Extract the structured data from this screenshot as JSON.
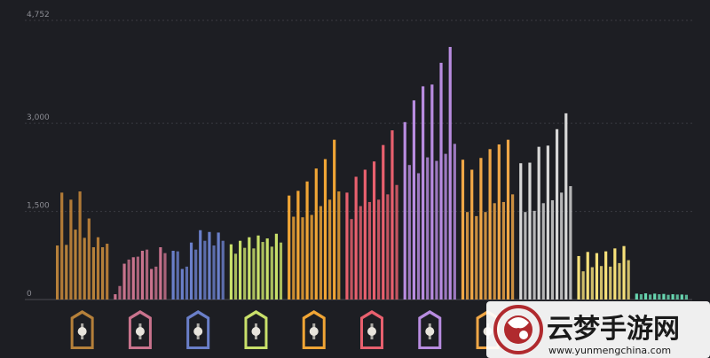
{
  "chart_data": {
    "type": "bar",
    "ylim": [
      0,
      4752
    ],
    "yticks": [
      {
        "value": 0,
        "label": "0"
      },
      {
        "value": 1500,
        "label": "1,500"
      },
      {
        "value": 3000,
        "label": "3,000"
      },
      {
        "value": 4752,
        "label": "4,752"
      }
    ],
    "grid": true,
    "groups": [
      {
        "icon": "hand-icon",
        "color": "#b5803a",
        "alt_color": "#d28f3c",
        "values": [
          920,
          1820,
          930,
          1700,
          1190,
          1840,
          1050,
          1380,
          890,
          1060,
          890,
          950
        ]
      },
      {
        "icon": "eye-mask-icon",
        "color": "#c9738d",
        "alt_color": "#c9738d",
        "values": [
          90,
          230,
          610,
          680,
          720,
          730,
          830,
          850,
          520,
          560,
          890,
          790
        ]
      },
      {
        "icon": "eye-key-icon",
        "color": "#6a7fc9",
        "alt_color": "#6a7fc9",
        "values": [
          830,
          820,
          520,
          560,
          970,
          850,
          1180,
          1000,
          1150,
          920,
          1140,
          1000
        ]
      },
      {
        "icon": "skull-leaf-icon",
        "color": "#c9e06a",
        "alt_color": "#c9e06a",
        "values": [
          940,
          780,
          1000,
          880,
          1060,
          870,
          1090,
          980,
          1040,
          900,
          1120,
          970
        ]
      },
      {
        "icon": "dagger-icon",
        "color": "#f0a535",
        "alt_color": "#f0a535",
        "values": [
          1770,
          1410,
          1850,
          1400,
          2010,
          1440,
          2230,
          1590,
          2390,
          1700,
          2720,
          1840
        ]
      },
      {
        "icon": "hand-drop-icon",
        "color": "#e8606e",
        "alt_color": "#e8606e",
        "values": [
          1820,
          1370,
          2090,
          1590,
          2210,
          1660,
          2350,
          1700,
          2630,
          1790,
          2880,
          1950
        ]
      },
      {
        "icon": "crown-icon",
        "color": "#b88ce0",
        "alt_color": "#b88ce0",
        "values": [
          3020,
          2290,
          3390,
          2150,
          3630,
          2420,
          3660,
          2360,
          4030,
          2480,
          4300,
          2650
        ]
      },
      {
        "icon": "mask-icon",
        "color": "#f0a747",
        "alt_color": "#f0a747",
        "values": [
          2380,
          1490,
          2210,
          1420,
          2410,
          1490,
          2560,
          1640,
          2640,
          1660,
          2720,
          1790
        ]
      },
      {
        "icon": "ghost-icon",
        "color": "#d7d7d7",
        "alt_color": "#d7d7d7",
        "values": [
          2320,
          1490,
          2330,
          1510,
          2600,
          1640,
          2620,
          1690,
          2900,
          1820,
          3170,
          1930
        ]
      },
      {
        "icon": "shield-icon",
        "color": "#f6e07a",
        "alt_color": "#f6e07a",
        "values": [
          740,
          480,
          810,
          550,
          790,
          570,
          820,
          560,
          870,
          620,
          910,
          670
        ]
      },
      {
        "icon": "leaf-icon",
        "color": "#68d6b0",
        "alt_color": "#68d6b0",
        "values": [
          100,
          90,
          105,
          85,
          100,
          90,
          95,
          80,
          90,
          85,
          85,
          80
        ]
      }
    ]
  },
  "watermark": {
    "text": "云梦手游网",
    "url": "www.yunmengchina.com"
  }
}
